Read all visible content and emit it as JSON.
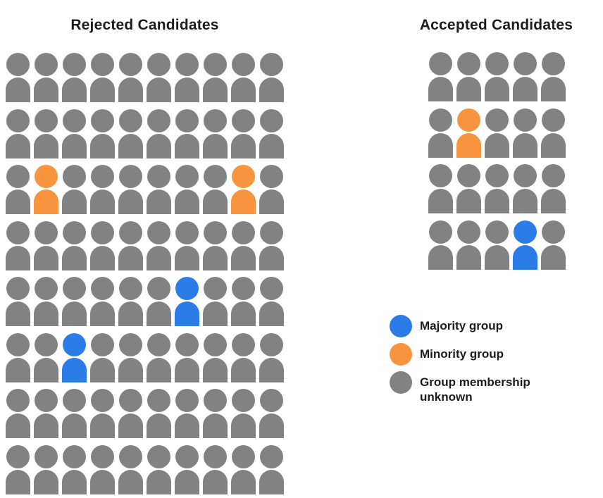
{
  "colors": {
    "majority": "#2C7CE8",
    "minority": "#F8943D",
    "unknown": "#828282",
    "text": "#1C1C1C",
    "background": "#FFFFFF"
  },
  "chart_data": {
    "type": "pictograph",
    "unit": "1 icon = 1 candidate",
    "panels": [
      {
        "id": "rejected",
        "title": "Rejected Candidates",
        "grid_rows": 8,
        "grid_cols": 10,
        "total_people": 80,
        "counts": {
          "majority_group": 2,
          "minority_group": 2,
          "unknown": 76
        },
        "highlighted_cells": [
          {
            "row": 3,
            "col": 2,
            "group": "minority"
          },
          {
            "row": 3,
            "col": 9,
            "group": "minority"
          },
          {
            "row": 5,
            "col": 7,
            "group": "majority"
          },
          {
            "row": 6,
            "col": 3,
            "group": "majority"
          }
        ]
      },
      {
        "id": "accepted",
        "title": "Accepted Candidates",
        "grid_rows": 4,
        "grid_cols": 5,
        "total_people": 20,
        "counts": {
          "majority_group": 1,
          "minority_group": 1,
          "unknown": 18
        },
        "highlighted_cells": [
          {
            "row": 2,
            "col": 2,
            "group": "minority"
          },
          {
            "row": 4,
            "col": 4,
            "group": "majority"
          }
        ]
      }
    ],
    "legend": [
      {
        "group": "majority",
        "label": "Majority group",
        "color": "#2C7CE8"
      },
      {
        "group": "minority",
        "label": "Minority group",
        "color": "#F8943D"
      },
      {
        "group": "unknown",
        "label": "Group membership unknown",
        "color": "#828282"
      }
    ],
    "legend_position": "right-bottom"
  }
}
